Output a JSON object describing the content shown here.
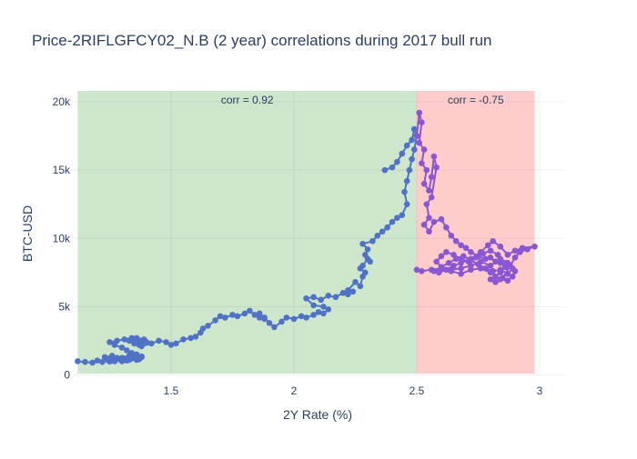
{
  "chart_data": {
    "type": "scatter",
    "title": "Price-2RIFLGFCY02_N.B (2 year) correlations during 2017 bull run",
    "xlabel": "2Y Rate (%)",
    "ylabel": "BTC-USD",
    "xlim": [
      1.1,
      3.1
    ],
    "ylim": [
      -500,
      20800
    ],
    "x_ticks": [
      1.5,
      2,
      2.5,
      3
    ],
    "x_tick_labels": [
      "1.5",
      "2",
      "2.5",
      "3"
    ],
    "y_ticks": [
      0,
      5000,
      10000,
      15000,
      20000
    ],
    "y_tick_labels": [
      "0",
      "5k",
      "10k",
      "15k",
      "20k"
    ],
    "grid": true,
    "legend": "none",
    "regions": [
      {
        "x_start": 1.12,
        "x_end": 2.5,
        "color": "#cde6cc",
        "annotation": "corr = 0.92"
      },
      {
        "x_start": 2.5,
        "x_end": 2.98,
        "color": "#ffcccc",
        "annotation": "corr = -0.75"
      }
    ],
    "series": [
      {
        "color": "#4f72c6",
        "mode": "lines+markers",
        "points": [
          [
            1.12,
            1000
          ],
          [
            1.15,
            950
          ],
          [
            1.18,
            900
          ],
          [
            1.2,
            1050
          ],
          [
            1.22,
            950
          ],
          [
            1.24,
            1100
          ],
          [
            1.25,
            980
          ],
          [
            1.27,
            1000
          ],
          [
            1.29,
            1150
          ],
          [
            1.3,
            1000
          ],
          [
            1.31,
            1200
          ],
          [
            1.33,
            1100
          ],
          [
            1.35,
            1250
          ],
          [
            1.37,
            1150
          ],
          [
            1.38,
            1300
          ],
          [
            1.36,
            1100
          ],
          [
            1.34,
            1200
          ],
          [
            1.32,
            1050
          ],
          [
            1.3,
            1150
          ],
          [
            1.28,
            1250
          ],
          [
            1.25,
            1200
          ],
          [
            1.23,
            1300
          ],
          [
            1.26,
            1400
          ],
          [
            1.3,
            1250
          ],
          [
            1.33,
            1400
          ],
          [
            1.36,
            1500
          ],
          [
            1.38,
            1350
          ],
          [
            1.34,
            1600
          ],
          [
            1.32,
            1800
          ],
          [
            1.3,
            2000
          ],
          [
            1.27,
            2200
          ],
          [
            1.25,
            2400
          ],
          [
            1.28,
            2500
          ],
          [
            1.31,
            2600
          ],
          [
            1.34,
            2700
          ],
          [
            1.36,
            2600
          ],
          [
            1.38,
            2500
          ],
          [
            1.35,
            2300
          ],
          [
            1.33,
            2500
          ],
          [
            1.36,
            2700
          ],
          [
            1.39,
            2600
          ],
          [
            1.4,
            2400
          ],
          [
            1.37,
            2200
          ],
          [
            1.35,
            2400
          ],
          [
            1.38,
            2100
          ],
          [
            1.42,
            2300
          ],
          [
            1.45,
            2500
          ],
          [
            1.48,
            2400
          ],
          [
            1.5,
            2200
          ],
          [
            1.52,
            2300
          ],
          [
            1.55,
            2600
          ],
          [
            1.58,
            2700
          ],
          [
            1.6,
            2800
          ],
          [
            1.62,
            3100
          ],
          [
            1.63,
            3400
          ],
          [
            1.65,
            3600
          ],
          [
            1.68,
            4000
          ],
          [
            1.7,
            4300
          ],
          [
            1.72,
            4200
          ],
          [
            1.75,
            4400
          ],
          [
            1.77,
            4300
          ],
          [
            1.8,
            4500
          ],
          [
            1.82,
            4700
          ],
          [
            1.84,
            4400
          ],
          [
            1.86,
            4200
          ],
          [
            1.88,
            4100
          ],
          [
            1.86,
            4500
          ],
          [
            1.88,
            4200
          ],
          [
            1.9,
            3800
          ],
          [
            1.92,
            3500
          ],
          [
            1.95,
            3900
          ],
          [
            1.97,
            4200
          ],
          [
            2.0,
            4100
          ],
          [
            2.03,
            4300
          ],
          [
            2.05,
            4200
          ],
          [
            2.08,
            4400
          ],
          [
            2.1,
            4600
          ],
          [
            2.12,
            4500
          ],
          [
            2.14,
            4800
          ],
          [
            2.12,
            5000
          ],
          [
            2.08,
            5100
          ],
          [
            2.05,
            5600
          ],
          [
            2.08,
            5700
          ],
          [
            2.11,
            5500
          ],
          [
            2.14,
            5800
          ],
          [
            2.17,
            5700
          ],
          [
            2.2,
            6000
          ],
          [
            2.22,
            5900
          ],
          [
            2.24,
            6100
          ],
          [
            2.22,
            6200
          ],
          [
            2.25,
            6800
          ],
          [
            2.27,
            6500
          ],
          [
            2.28,
            7200
          ],
          [
            2.29,
            7500
          ],
          [
            2.27,
            7800
          ],
          [
            2.28,
            8000
          ],
          [
            2.3,
            8500
          ],
          [
            2.31,
            8300
          ],
          [
            2.29,
            8800
          ],
          [
            2.3,
            9200
          ],
          [
            2.28,
            9600
          ],
          [
            2.32,
            9800
          ],
          [
            2.34,
            10200
          ],
          [
            2.36,
            10500
          ],
          [
            2.38,
            10800
          ],
          [
            2.4,
            11200
          ],
          [
            2.42,
            11500
          ],
          [
            2.44,
            11700
          ],
          [
            2.46,
            12500
          ],
          [
            2.45,
            13400
          ],
          [
            2.46,
            14200
          ],
          [
            2.47,
            15000
          ],
          [
            2.48,
            15800
          ],
          [
            2.49,
            16500
          ],
          [
            2.5,
            17500
          ],
          [
            2.49,
            18000
          ],
          [
            2.48,
            17200
          ],
          [
            2.46,
            16800
          ],
          [
            2.44,
            16200
          ],
          [
            2.42,
            15600
          ],
          [
            2.4,
            15200
          ],
          [
            2.37,
            15000
          ]
        ]
      },
      {
        "color": "#8a56d1",
        "mode": "lines+markers",
        "points": [
          [
            2.5,
            17500
          ],
          [
            2.51,
            19200
          ],
          [
            2.52,
            18500
          ],
          [
            2.51,
            17000
          ],
          [
            2.53,
            16500
          ],
          [
            2.52,
            15500
          ],
          [
            2.54,
            15000
          ],
          [
            2.53,
            14000
          ],
          [
            2.55,
            13500
          ],
          [
            2.56,
            14500
          ],
          [
            2.57,
            16000
          ],
          [
            2.58,
            15200
          ],
          [
            2.56,
            13000
          ],
          [
            2.54,
            12500
          ],
          [
            2.55,
            11500
          ],
          [
            2.53,
            11000
          ],
          [
            2.55,
            10500
          ],
          [
            2.57,
            11200
          ],
          [
            2.6,
            11400
          ],
          [
            2.62,
            10800
          ],
          [
            2.64,
            10200
          ],
          [
            2.66,
            9800
          ],
          [
            2.68,
            9500
          ],
          [
            2.7,
            9300
          ],
          [
            2.72,
            9000
          ],
          [
            2.75,
            8700
          ],
          [
            2.78,
            8500
          ],
          [
            2.8,
            8600
          ],
          [
            2.82,
            8300
          ],
          [
            2.84,
            8200
          ],
          [
            2.86,
            7900
          ],
          [
            2.84,
            7500
          ],
          [
            2.82,
            7200
          ],
          [
            2.8,
            7000
          ],
          [
            2.82,
            6800
          ],
          [
            2.85,
            7100
          ],
          [
            2.88,
            8000
          ],
          [
            2.9,
            8600
          ],
          [
            2.92,
            9000
          ],
          [
            2.95,
            9200
          ],
          [
            2.98,
            9400
          ],
          [
            2.93,
            9300
          ],
          [
            2.9,
            9100
          ],
          [
            2.87,
            8800
          ],
          [
            2.84,
            9400
          ],
          [
            2.81,
            9800
          ],
          [
            2.79,
            9500
          ],
          [
            2.76,
            9000
          ],
          [
            2.72,
            8500
          ],
          [
            2.68,
            8200
          ],
          [
            2.65,
            8000
          ],
          [
            2.62,
            7700
          ],
          [
            2.59,
            7500
          ],
          [
            2.57,
            7600
          ],
          [
            2.6,
            7900
          ],
          [
            2.63,
            8200
          ],
          [
            2.66,
            8500
          ],
          [
            2.69,
            8700
          ],
          [
            2.72,
            8400
          ],
          [
            2.75,
            8100
          ],
          [
            2.78,
            7800
          ],
          [
            2.81,
            7600
          ],
          [
            2.84,
            7700
          ],
          [
            2.87,
            7400
          ],
          [
            2.89,
            7800
          ],
          [
            2.86,
            8200
          ],
          [
            2.83,
            8800
          ],
          [
            2.8,
            9100
          ],
          [
            2.77,
            8900
          ],
          [
            2.74,
            8600
          ],
          [
            2.71,
            8300
          ],
          [
            2.68,
            8500
          ],
          [
            2.65,
            8800
          ],
          [
            2.62,
            9000
          ],
          [
            2.6,
            8700
          ],
          [
            2.58,
            8300
          ],
          [
            2.6,
            7900
          ],
          [
            2.64,
            7600
          ],
          [
            2.68,
            7400
          ],
          [
            2.72,
            7700
          ],
          [
            2.76,
            7800
          ],
          [
            2.8,
            7500
          ],
          [
            2.84,
            7000
          ],
          [
            2.87,
            6900
          ],
          [
            2.89,
            7200
          ],
          [
            2.9,
            7600
          ],
          [
            2.87,
            8200
          ],
          [
            2.84,
            8500
          ],
          [
            2.8,
            8000
          ],
          [
            2.76,
            8300
          ],
          [
            2.72,
            8000
          ],
          [
            2.68,
            7800
          ],
          [
            2.64,
            7700
          ],
          [
            2.6,
            7800
          ],
          [
            2.56,
            7700
          ],
          [
            2.52,
            7600
          ],
          [
            2.5,
            7700
          ]
        ]
      }
    ]
  }
}
